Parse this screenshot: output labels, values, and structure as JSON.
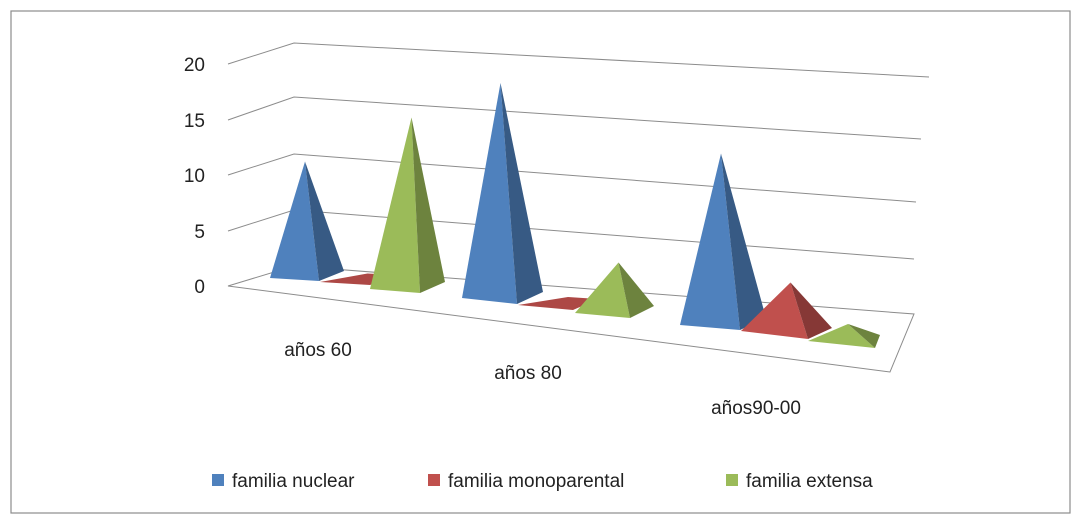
{
  "chart_data": {
    "type": "bar",
    "style": "3d-pyramid",
    "categories": [
      "años 60",
      "años 80",
      "años90-00"
    ],
    "series": [
      {
        "name": "familia nuclear",
        "values": [
          10,
          19,
          15
        ],
        "color": "#4F81BD"
      },
      {
        "name": "familia monoparental",
        "values": [
          0,
          0,
          4
        ],
        "color": "#C0504D"
      },
      {
        "name": "familia extensa",
        "values": [
          15,
          4,
          1
        ],
        "color": "#9BBB59"
      }
    ],
    "y_ticks": [
      "0",
      "5",
      "10",
      "15",
      "20"
    ],
    "ylim": [
      0,
      20
    ],
    "grid": true,
    "legend_position": "bottom"
  }
}
